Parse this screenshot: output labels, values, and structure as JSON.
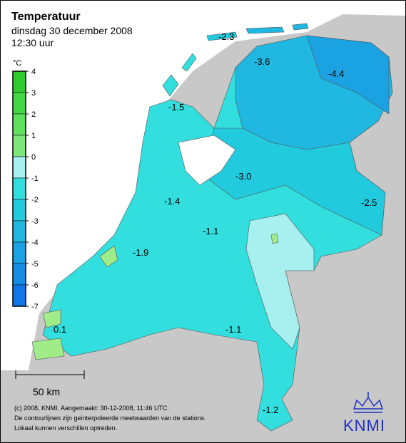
{
  "header": {
    "title": "Temperatuur",
    "date": "dinsdag 30 december 2008",
    "time": "12:30 uur"
  },
  "legend": {
    "unit": "°C",
    "ticks": [
      4,
      3,
      2,
      1,
      0,
      -1,
      -2,
      -3,
      -4,
      -5,
      -6,
      -7
    ],
    "colors": [
      "#2ecc2e",
      "#44d844",
      "#5fe05f",
      "#7de67d",
      "#a8f0f0",
      "#33dede",
      "#22cade",
      "#20b8e0",
      "#1aa2e2",
      "#168ce4",
      "#1276e8"
    ]
  },
  "map_labels": [
    "-2.3",
    "-3.6",
    "-4.4",
    "-1.5",
    "-3.0",
    "-2.5",
    "-1.4",
    "-1.1",
    "-1.9",
    "0.1",
    "-1.1",
    "-1.2"
  ],
  "scale": "50 km",
  "footer": [
    "(c) 2008, KNMI. Aangemaakt: 30-12-2008, 11:46 UTC",
    "De contourlijnen zijn geinterpoleerde meetwaarden van de stations.",
    "Lokaal kunnen verschillen optreden."
  ],
  "logo": "KNMI"
}
